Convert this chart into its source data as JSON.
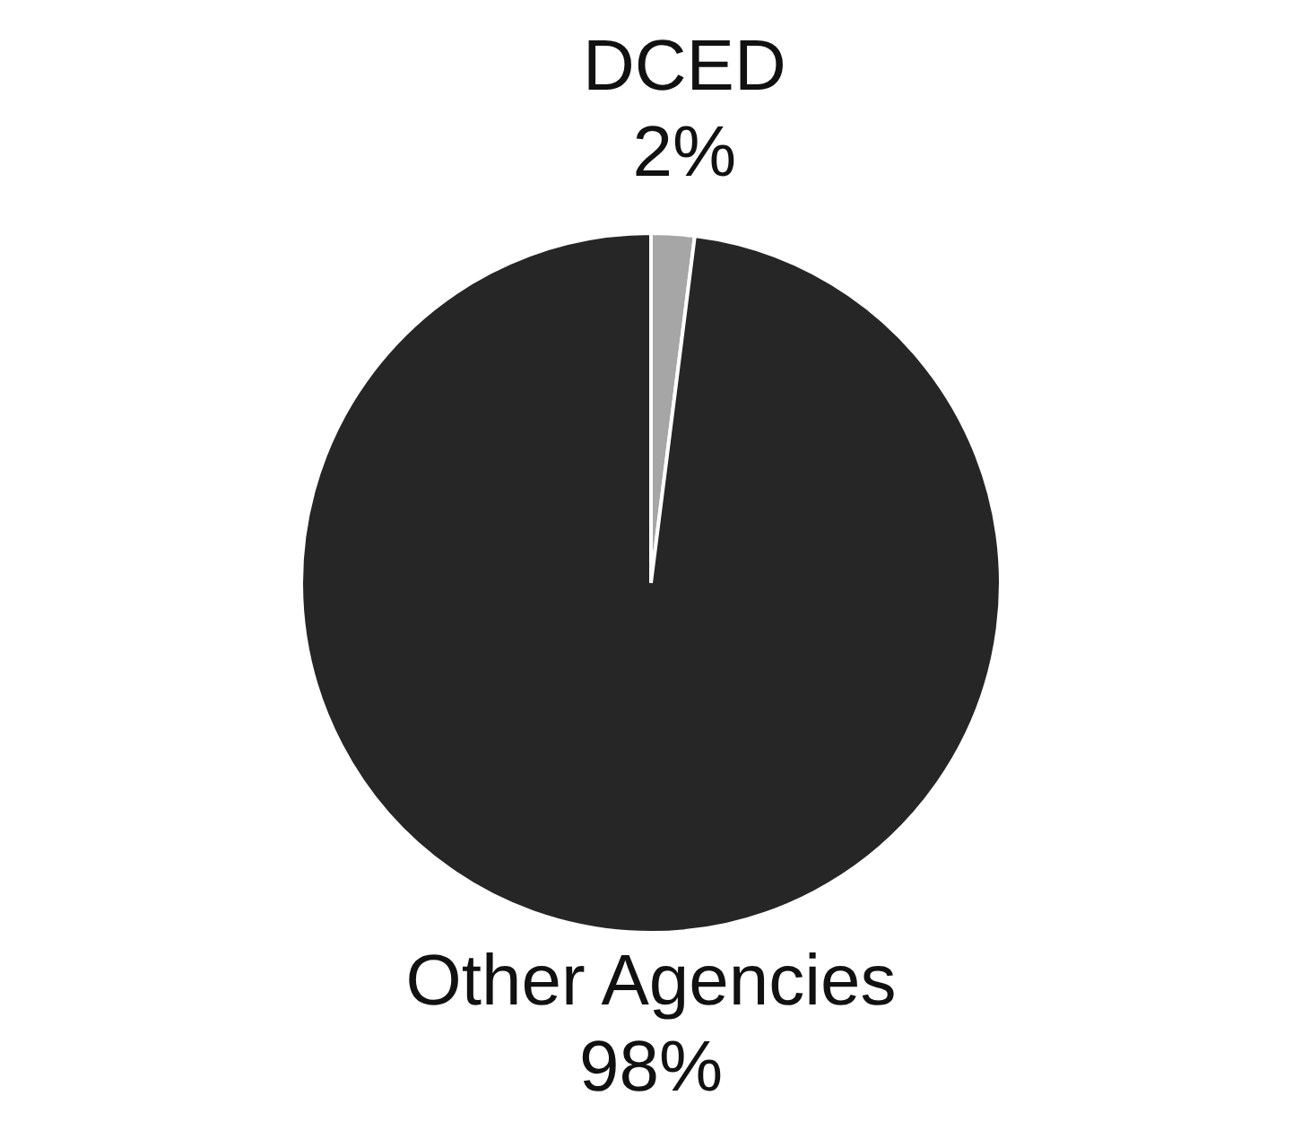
{
  "chart_data": {
    "type": "pie",
    "categories": [
      "DCED",
      "Other Agencies"
    ],
    "values": [
      2,
      98
    ],
    "colors": [
      "#a6a6a6",
      "#262626"
    ],
    "value_labels": [
      "2%",
      "98%"
    ]
  }
}
